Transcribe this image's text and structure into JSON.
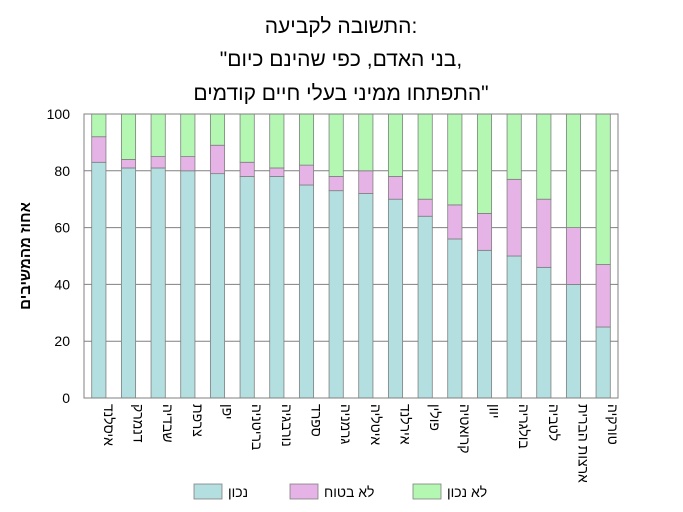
{
  "chart_data": {
    "type": "bar",
    "stacked": true,
    "title_lines": [
      "התשובה לקביעה:",
      "\"בני האדם, כפי שהינם כיום,",
      "התפתחו ממיני בעלי חיים קודמים\""
    ],
    "xlabel": "",
    "ylabel": "אחוז מהמשיבים",
    "ylim": [
      0,
      100
    ],
    "yticks": [
      "0",
      "20",
      "40",
      "60",
      "80",
      "100"
    ],
    "grid": "horizontal",
    "legend_position": "bottom",
    "categories": [
      "איסלנד",
      "דנמרק",
      "שבדיה",
      "צרפת",
      "יפן",
      "בריטניה",
      "נורבגיה",
      "ספרד",
      "גרמניה",
      "איטליה",
      "אירלנד",
      "פולין",
      "קרואטיה",
      "יוון",
      "בולגריה",
      "לטביה",
      "ארצות הברית",
      "טורקיה"
    ],
    "series": [
      {
        "name": "נכון",
        "color": "#b3dfe0",
        "values": [
          83,
          81,
          81,
          80,
          79,
          78,
          78,
          75,
          73,
          72,
          70,
          64,
          56,
          52,
          50,
          46,
          40,
          25
        ]
      },
      {
        "name": "לא בטוח",
        "color": "#e6b3e6",
        "values": [
          9,
          3,
          4,
          5,
          10,
          5,
          3,
          7,
          5,
          8,
          8,
          6,
          12,
          13,
          27,
          24,
          20,
          22
        ]
      },
      {
        "name": "לא נכון",
        "color": "#b3f7b3",
        "values": [
          8,
          16,
          15,
          15,
          11,
          17,
          19,
          18,
          22,
          20,
          22,
          30,
          32,
          35,
          23,
          30,
          40,
          53
        ]
      }
    ]
  }
}
